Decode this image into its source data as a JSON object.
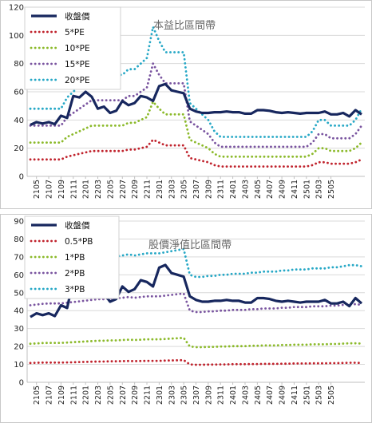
{
  "colors": {
    "close": "#17275e",
    "s1": "#c0232d",
    "s2": "#8cba2b",
    "s3": "#7a55a0",
    "s4": "#27a8c6"
  },
  "chart_data": [
    {
      "type": "line",
      "title": "本益比區間帶",
      "ylim": [
        0,
        120
      ],
      "yticks": [
        0,
        20,
        40,
        60,
        80,
        100,
        120
      ],
      "grid": true,
      "legend": "top-left",
      "x_tick_labels": [
        "2105",
        "2107",
        "2109",
        "2111",
        "2201",
        "2203",
        "2205",
        "2207",
        "2209",
        "2211",
        "2301",
        "2303",
        "2305",
        "2307",
        "2309",
        "2311",
        "2401",
        "2403",
        "2405",
        "2407",
        "2409",
        "2411",
        "2501",
        "2503",
        "2505"
      ],
      "x_start": "2104",
      "series": [
        {
          "name": "收盤價",
          "key": "close",
          "values": [
            36.5,
            38.5,
            37.5,
            38.5,
            37,
            43,
            41.5,
            57,
            56,
            60,
            56.5,
            48,
            49.5,
            45,
            46.5,
            53.5,
            50.5,
            52,
            57,
            56,
            53.5,
            64,
            65.5,
            61,
            60,
            59,
            48,
            46,
            45,
            45,
            45.5,
            45.5,
            46,
            45.5,
            45.5,
            44.5,
            44.5,
            47,
            47,
            46.5,
            45.5,
            45,
            45.5,
            45,
            44.5,
            45,
            45,
            45,
            46,
            44,
            44,
            45,
            42.5,
            47,
            44
          ]
        },
        {
          "name": "5*PE",
          "key": "s1",
          "values": [
            12,
            12,
            12,
            12,
            12,
            12,
            14,
            15,
            16,
            17,
            18,
            18,
            18,
            18,
            18,
            18,
            19,
            19,
            20,
            21,
            26,
            24,
            22,
            22,
            22,
            22,
            13,
            12,
            11,
            10,
            8,
            7,
            7,
            7,
            7,
            7,
            7,
            7,
            7,
            7,
            7,
            7,
            7,
            7,
            7,
            7,
            8,
            10,
            10,
            9,
            9,
            9,
            9,
            10,
            12
          ]
        },
        {
          "name": "10*PE",
          "key": "s2",
          "values": [
            24,
            24,
            24,
            24,
            24,
            24,
            28,
            30,
            32,
            34,
            36,
            36,
            36,
            36,
            36,
            36,
            38,
            38,
            40,
            42,
            53,
            48,
            44,
            44,
            44,
            44,
            26,
            24,
            22,
            20,
            16,
            14,
            14,
            14,
            14,
            14,
            14,
            14,
            14,
            14,
            14,
            14,
            14,
            14,
            14,
            14,
            16,
            20,
            20,
            18,
            18,
            18,
            18,
            20,
            24
          ]
        },
        {
          "name": "15*PE",
          "key": "s3",
          "values": [
            36,
            36,
            36,
            36,
            36,
            36,
            42,
            45,
            48,
            51,
            54,
            54,
            54,
            54,
            54,
            54,
            57,
            57,
            60,
            63,
            80,
            72,
            66,
            66,
            66,
            66,
            39,
            36,
            33,
            30,
            24,
            21,
            21,
            21,
            21,
            21,
            21,
            21,
            21,
            21,
            21,
            21,
            21,
            21,
            21,
            21,
            24,
            30,
            30,
            27,
            27,
            27,
            27,
            30,
            36
          ]
        },
        {
          "name": "20*PE",
          "key": "s4",
          "values": [
            48,
            48,
            48,
            48,
            48,
            48,
            56,
            60,
            64,
            68,
            72,
            72,
            72,
            72,
            72,
            72,
            76,
            76,
            80,
            84,
            106,
            96,
            88,
            88,
            88,
            88,
            52,
            48,
            44,
            40,
            32,
            28,
            28,
            28,
            28,
            28,
            28,
            28,
            28,
            28,
            28,
            28,
            28,
            28,
            28,
            28,
            32,
            40,
            40,
            36,
            36,
            36,
            36,
            40,
            48
          ]
        }
      ]
    },
    {
      "type": "line",
      "title": "股價淨值比區間帶",
      "ylim": [
        0,
        90
      ],
      "yticks": [
        0,
        10,
        20,
        30,
        40,
        50,
        60,
        70,
        80,
        90
      ],
      "grid": true,
      "legend": "top-left",
      "x_tick_labels": [
        "2105",
        "2107",
        "2109",
        "2111",
        "2201",
        "2203",
        "2205",
        "2207",
        "2209",
        "2211",
        "2301",
        "2303",
        "2305",
        "2307",
        "2309",
        "2311",
        "2401",
        "2403",
        "2405",
        "2407",
        "2409",
        "2411",
        "2501",
        "2503",
        "2505"
      ],
      "x_start": "2104",
      "series": [
        {
          "name": "收盤價",
          "key": "close",
          "values": [
            36.5,
            38.5,
            37.5,
            38.5,
            37,
            43,
            41.5,
            57,
            56,
            60,
            56.5,
            48,
            49.5,
            45,
            46.5,
            53.5,
            50.5,
            52,
            57,
            56,
            53.5,
            64,
            65.5,
            61,
            60,
            59,
            48,
            46,
            45,
            45,
            45.5,
            45.5,
            46,
            45.5,
            45.5,
            44.5,
            44.5,
            47,
            47,
            46.5,
            45.5,
            45,
            45.5,
            45,
            44.5,
            45,
            45,
            45,
            46,
            44,
            44,
            45,
            42.5,
            47,
            44
          ]
        },
        {
          "name": "0.5*PB",
          "key": "s1",
          "values": [
            10.8,
            10.9,
            11,
            11,
            11,
            11,
            11.1,
            11.2,
            11.3,
            11.4,
            11.5,
            11.6,
            11.6,
            11.7,
            11.7,
            11.8,
            11.9,
            11.8,
            11.9,
            12,
            12,
            12,
            12.1,
            12.2,
            12.3,
            12.4,
            10,
            9.8,
            9.8,
            9.9,
            9.9,
            10,
            10,
            10.1,
            10.1,
            10.1,
            10.2,
            10.2,
            10.3,
            10.3,
            10.3,
            10.4,
            10.4,
            10.5,
            10.5,
            10.5,
            10.6,
            10.6,
            10.6,
            10.7,
            10.7,
            10.8,
            10.9,
            10.9,
            10.8
          ]
        },
        {
          "name": "1*PB",
          "key": "s2",
          "values": [
            21.5,
            21.7,
            21.9,
            22,
            22,
            22,
            22.2,
            22.4,
            22.6,
            22.8,
            23,
            23.2,
            23.2,
            23.4,
            23.4,
            23.6,
            23.8,
            23.6,
            23.8,
            24,
            24,
            24,
            24.2,
            24.4,
            24.6,
            24.8,
            20,
            19.6,
            19.6,
            19.8,
            19.8,
            20,
            20,
            20.2,
            20.2,
            20.2,
            20.4,
            20.4,
            20.6,
            20.6,
            20.6,
            20.8,
            20.8,
            21,
            21,
            21,
            21.2,
            21.2,
            21.2,
            21.4,
            21.4,
            21.6,
            21.8,
            21.8,
            21.6
          ]
        },
        {
          "name": "2*PB",
          "key": "s3",
          "values": [
            43,
            43.4,
            43.8,
            44,
            44,
            44,
            44.4,
            44.8,
            45.2,
            45.6,
            46,
            46.4,
            46.4,
            46.8,
            46.8,
            47.2,
            47.6,
            47.2,
            47.6,
            48,
            48,
            48,
            48.4,
            48.8,
            49.2,
            49.6,
            40,
            39.2,
            39.2,
            39.6,
            39.6,
            40,
            40,
            40.4,
            40.4,
            40.4,
            40.8,
            40.8,
            41.2,
            41.2,
            41.2,
            41.6,
            41.6,
            42,
            42,
            42,
            42.4,
            42.4,
            42.4,
            42.8,
            42.8,
            43.2,
            43.6,
            43.6,
            43.2
          ]
        },
        {
          "name": "3*PB",
          "key": "s4",
          "values": [
            64.5,
            65.1,
            65.7,
            66,
            66,
            66,
            66.6,
            67.2,
            67.8,
            68.4,
            69,
            69.6,
            69.6,
            70.2,
            70.2,
            70.8,
            71.4,
            70.8,
            71.4,
            72,
            72,
            72,
            72.6,
            73.2,
            73.8,
            74.4,
            60,
            58.8,
            58.8,
            59.4,
            59.4,
            60,
            60,
            60.6,
            60.6,
            60.6,
            61.2,
            61.2,
            61.8,
            61.8,
            61.8,
            62.4,
            62.4,
            63,
            63,
            63,
            63.6,
            63.6,
            63.6,
            64.2,
            64.2,
            64.8,
            65.4,
            65.4,
            64.8
          ]
        }
      ]
    }
  ]
}
